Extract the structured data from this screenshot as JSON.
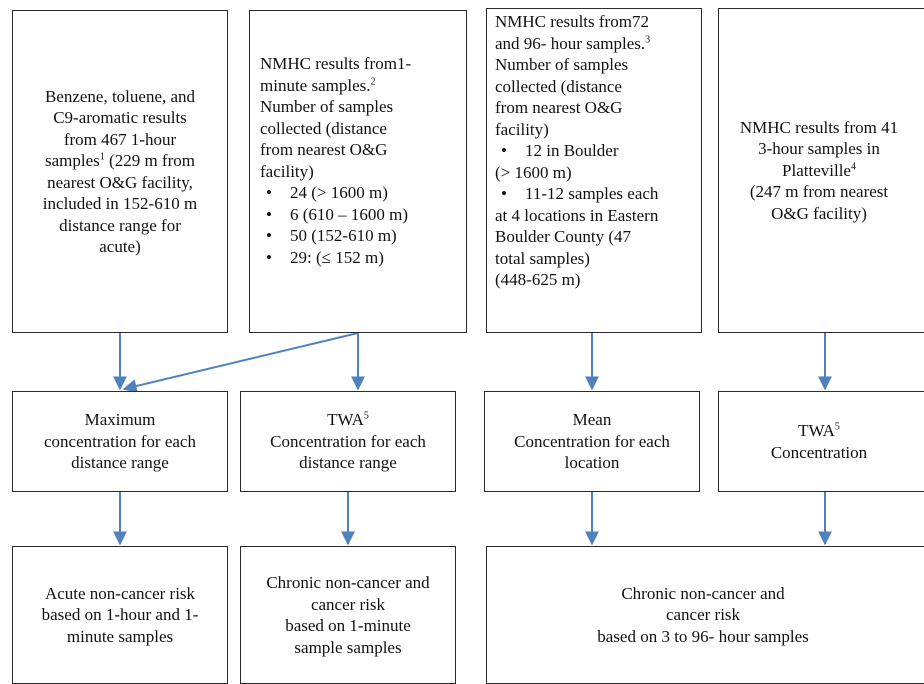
{
  "top_boxes": {
    "box1": {
      "lines": [
        "Benzene, toluene, and",
        "C9-aromatic results",
        "from 467 1-hour"
      ],
      "line4_pre": "samples",
      "line4_sup": "1",
      "line4_post": " (229 m from",
      "lines_after": [
        "nearest O&G facility,",
        "included in 152-610 m",
        "distance range for",
        "acute)"
      ]
    },
    "box2": {
      "line1": "NMHC results from1-",
      "line2_pre": "minute samples.",
      "line2_sup": "2",
      "lines": [
        "Number of samples",
        "collected (distance",
        "from nearest O&G",
        "facility)"
      ],
      "bullet_char": "•",
      "bullets": [
        "24 (> 1600 m)",
        "6 (610 – 1600 m)",
        "50 (152-610 m)",
        "29: (≤ 152 m)"
      ]
    },
    "box3": {
      "line1": "NMHC results from72",
      "line2_pre": "and 96- hour samples.",
      "line2_sup": "3",
      "lines": [
        "Number of samples",
        "collected (distance",
        "from nearest O&G",
        "facility)"
      ],
      "bullet_char": "•",
      "bullet1": "12 in Boulder",
      "bullet1_cont": "(> 1600 m)",
      "bullet2": "11-12 samples each",
      "bullet2_cont": [
        "at 4 locations in Eastern",
        "Boulder County (47",
        "total samples)",
        "(448-625 m)"
      ]
    },
    "box4": {
      "line1": "NMHC results from 41",
      "line2": "3-hour samples in",
      "line3_pre": "Platteville",
      "line3_sup": "4",
      "lines_after": [
        "(247 m from nearest",
        "O&G facility)"
      ]
    }
  },
  "middle_boxes": {
    "box1": {
      "lines": [
        "Maximum",
        "concentration for each",
        "distance range"
      ]
    },
    "box2": {
      "line1_pre": "TWA",
      "line1_sup": "5",
      "lines_after": [
        "Concentration for each",
        "distance range"
      ]
    },
    "box3": {
      "lines": [
        "Mean",
        "Concentration for each",
        "location"
      ]
    },
    "box4": {
      "line1_pre": "TWA",
      "line1_sup": "5",
      "lines_after": [
        "Concentration"
      ]
    }
  },
  "bottom_boxes": {
    "box1": {
      "lines": [
        "Acute non-cancer risk",
        "based on 1-hour and 1-",
        "minute samples"
      ]
    },
    "box2": {
      "lines": [
        "Chronic non-cancer and",
        "cancer risk",
        "based on 1-minute",
        "sample samples"
      ]
    },
    "box3": {
      "lines": [
        "Chronic non-cancer and",
        "cancer risk",
        "based on 3 to 96- hour samples"
      ]
    }
  },
  "colors": {
    "arrow": "#4f81bd",
    "border": "#2b2b2b"
  }
}
